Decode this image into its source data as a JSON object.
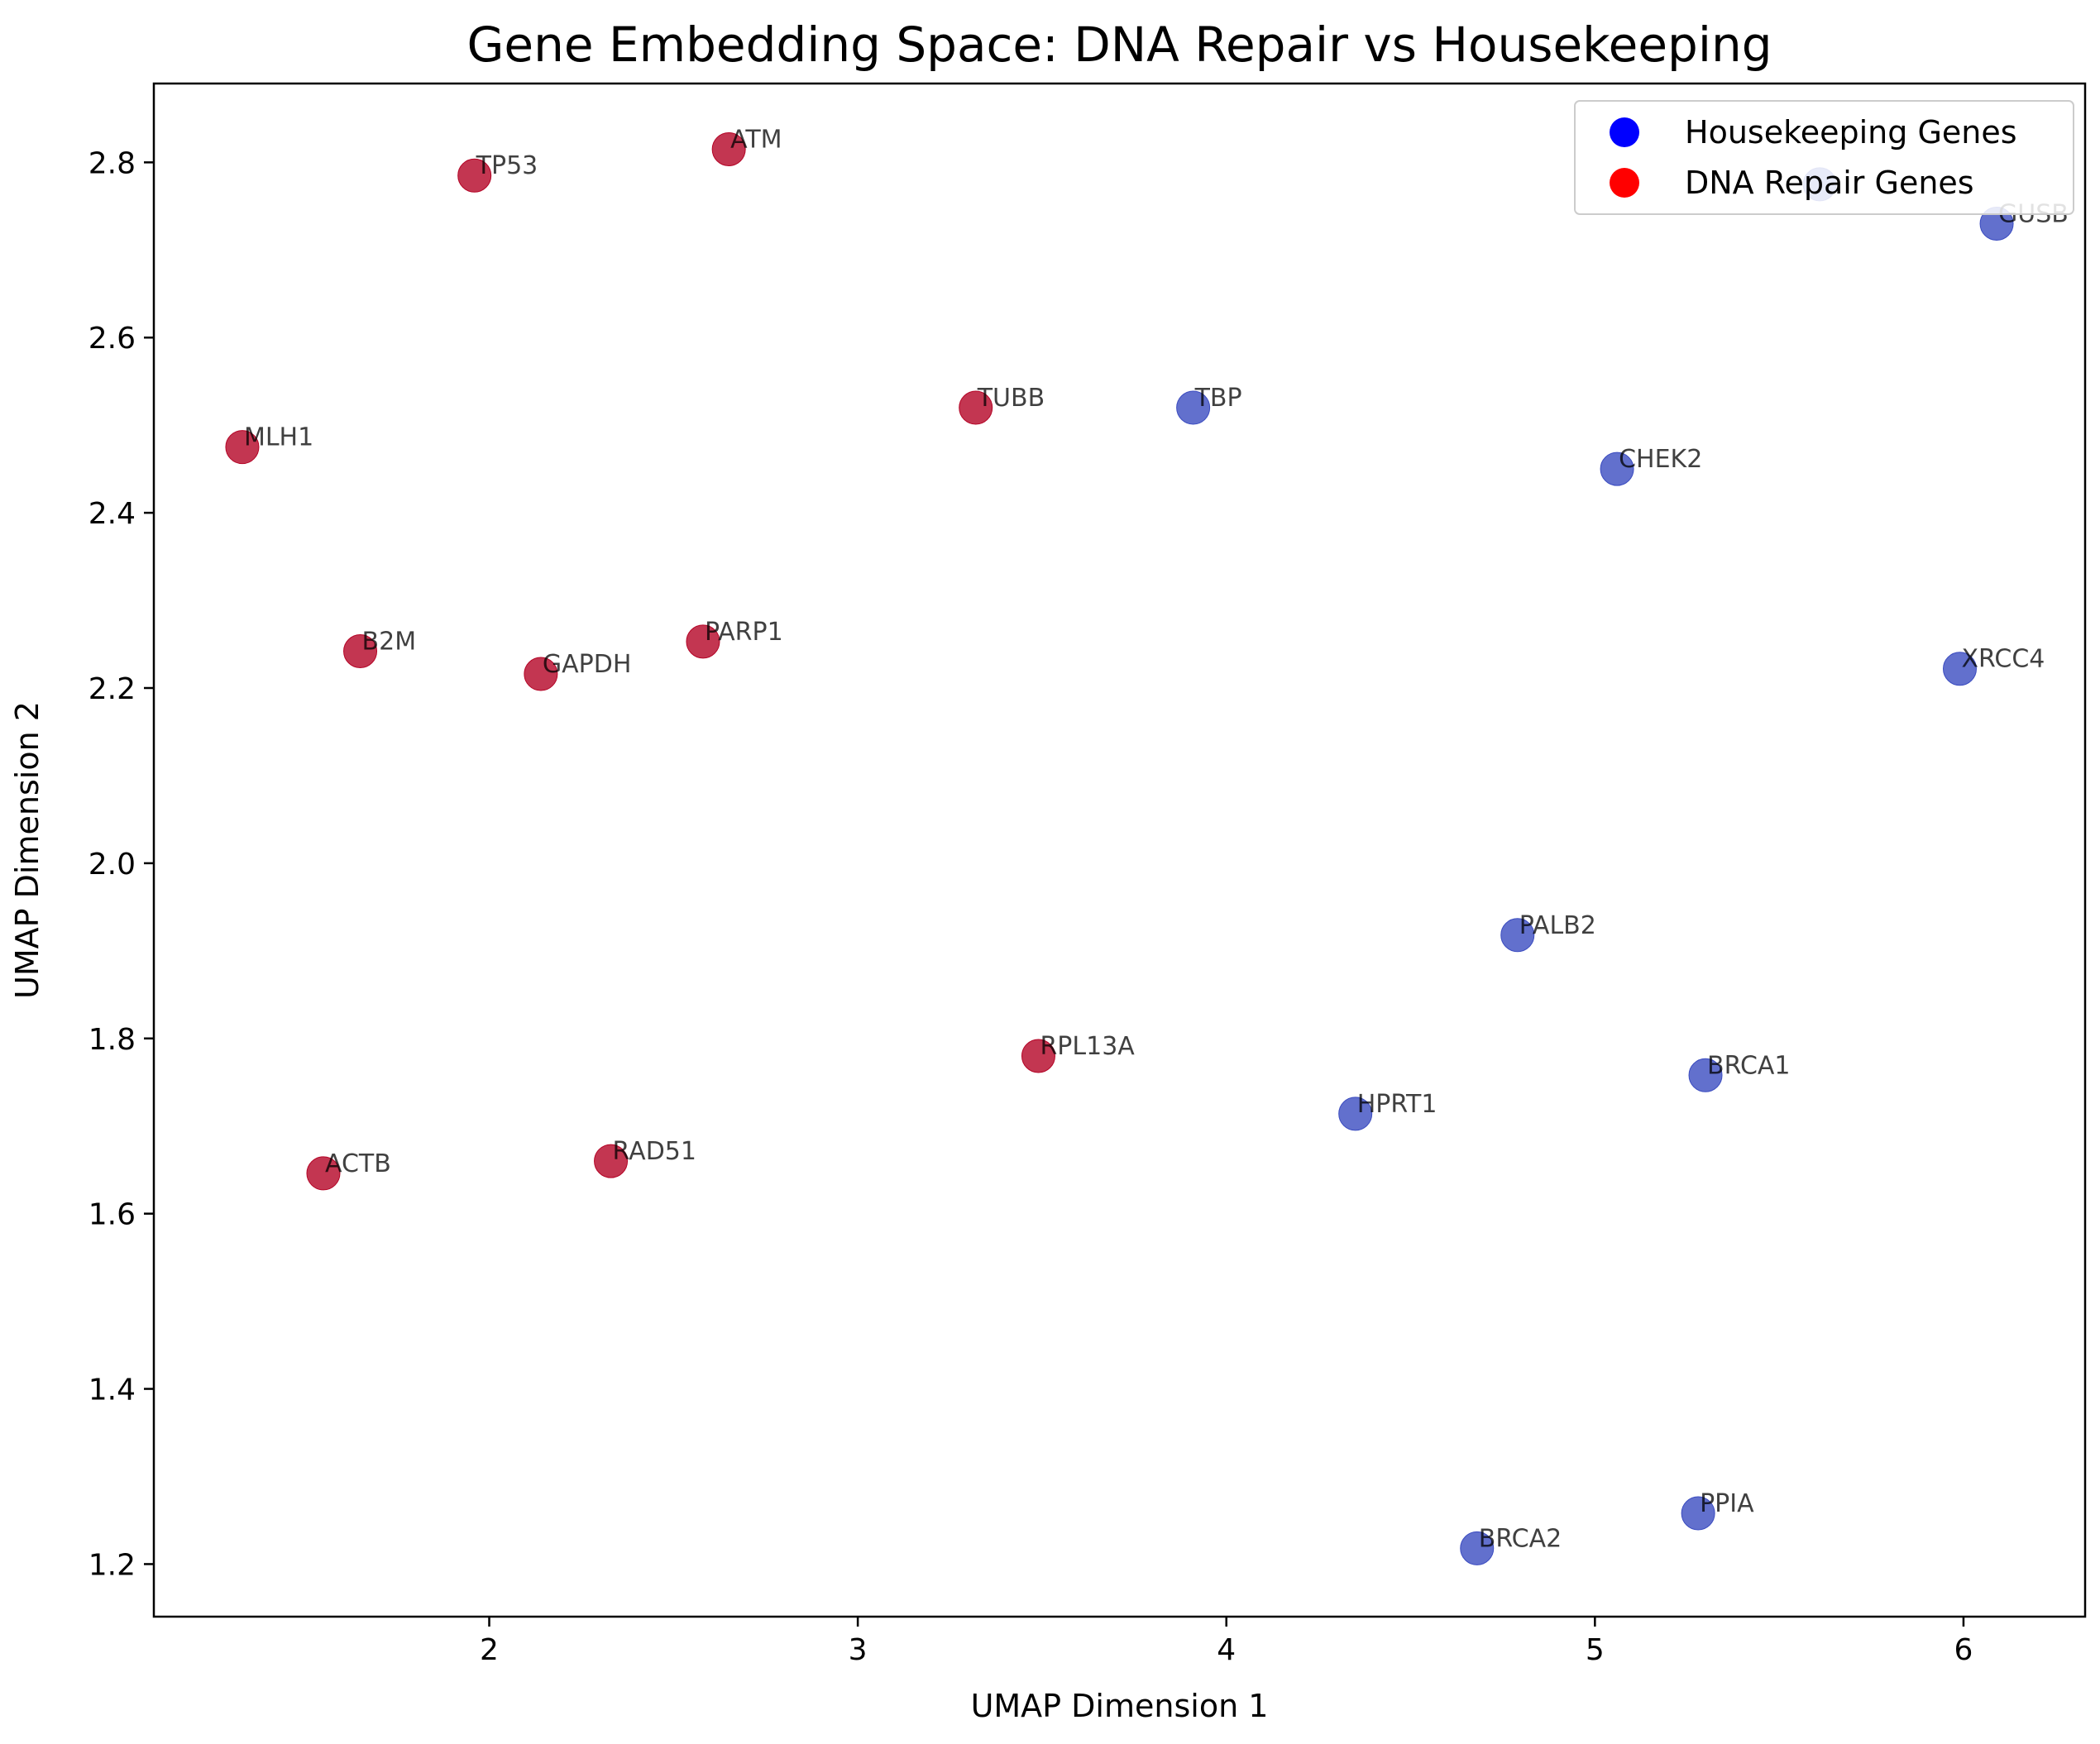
{
  "chart_data": {
    "type": "scatter",
    "title": "Gene Embedding Space: DNA Repair vs Housekeeping",
    "xlabel": "UMAP Dimension 1",
    "ylabel": "UMAP Dimension 2",
    "xlim": [
      1.09,
      6.33
    ],
    "ylim": [
      1.14,
      2.89
    ],
    "xticks": [
      2,
      3,
      4,
      5,
      6
    ],
    "yticks": [
      1.2,
      1.4,
      1.6,
      1.8,
      2.0,
      2.2,
      2.4,
      2.6,
      2.8
    ],
    "xtick_labels": [
      "2",
      "3",
      "4",
      "5",
      "6"
    ],
    "ytick_labels": [
      "1.2",
      "1.4",
      "1.6",
      "1.8",
      "2.0",
      "2.2",
      "2.4",
      "2.6",
      "2.8"
    ],
    "grid": false,
    "legend_position": "top-right",
    "legend": [
      {
        "label": "Housekeeping Genes",
        "color": "#0000ff"
      },
      {
        "label": "DNA Repair Genes",
        "color": "#ff0000"
      }
    ],
    "series": [
      {
        "color": "#b40426",
        "points": [
          {
            "label": "TP53",
            "x": 1.96,
            "y": 2.785
          },
          {
            "label": "ATM",
            "x": 2.65,
            "y": 2.815
          },
          {
            "label": "MLH1",
            "x": 1.33,
            "y": 2.475
          },
          {
            "label": "TUBB",
            "x": 3.32,
            "y": 2.52
          },
          {
            "label": "B2M",
            "x": 1.65,
            "y": 2.242
          },
          {
            "label": "GAPDH",
            "x": 2.14,
            "y": 2.216
          },
          {
            "label": "PARP1",
            "x": 2.58,
            "y": 2.253
          },
          {
            "label": "RPL13A",
            "x": 3.49,
            "y": 1.78
          },
          {
            "label": "ACTB",
            "x": 1.55,
            "y": 1.646
          },
          {
            "label": "RAD51",
            "x": 2.33,
            "y": 1.66
          }
        ]
      },
      {
        "color": "#3b4cc0",
        "points": [
          {
            "label": "TBP",
            "x": 3.91,
            "y": 2.52
          },
          {
            "label": "CHEK2",
            "x": 5.06,
            "y": 2.45
          },
          {
            "label": "GUSB",
            "x": 6.09,
            "y": 2.73
          },
          {
            "label": "",
            "x": 5.61,
            "y": 2.775
          },
          {
            "label": "XRCC4",
            "x": 5.99,
            "y": 2.222
          },
          {
            "label": "PALB2",
            "x": 4.79,
            "y": 1.918
          },
          {
            "label": "BRCA1",
            "x": 5.3,
            "y": 1.758
          },
          {
            "label": "HPRT1",
            "x": 4.35,
            "y": 1.714
          },
          {
            "label": "PPIA",
            "x": 5.28,
            "y": 1.258
          },
          {
            "label": "BRCA2",
            "x": 4.68,
            "y": 1.218
          }
        ]
      }
    ]
  }
}
